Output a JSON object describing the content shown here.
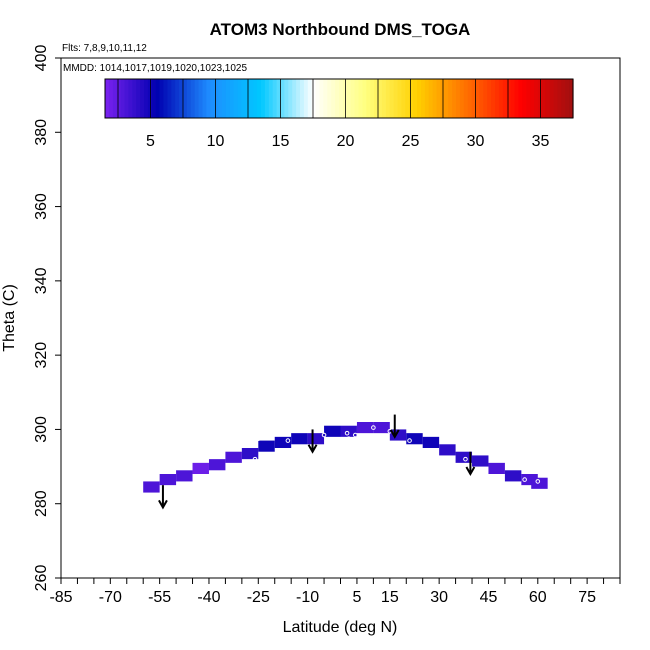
{
  "chart_data": {
    "type": "heatmap",
    "title": "ATOM3 Northbound DMS_TOGA",
    "notes": {
      "flights": "Flts: 7,8,9,10,11,12",
      "dates": "MMDD: 1014,1017,1019,1020,1023,1025"
    },
    "xlabel": "Latitude (deg N)",
    "ylabel": "Theta (C)",
    "xlim": [
      -85,
      85
    ],
    "ylim": [
      260,
      400
    ],
    "x_ticks": [
      -85,
      -70,
      -55,
      -40,
      -25,
      -10,
      5,
      15,
      30,
      45,
      60,
      75
    ],
    "y_ticks": [
      260,
      280,
      300,
      320,
      340,
      360,
      380,
      400
    ],
    "colorbar": {
      "range": [
        1.5,
        37.5
      ],
      "ticks": [
        5,
        10,
        15,
        20,
        25,
        30,
        35
      ],
      "colors": [
        "#7b22f0",
        "#0000b0",
        "#1e8cff",
        "#00c8ff",
        "#ffffff",
        "#ffff80",
        "#ffd000",
        "#ff6a00",
        "#ff0000",
        "#a01010"
      ]
    },
    "cells": [
      {
        "lat": -57.5,
        "theta": 284.5,
        "value": 3
      },
      {
        "lat": -52.5,
        "theta": 286.5,
        "value": 3
      },
      {
        "lat": -47.5,
        "theta": 287.5,
        "value": 3
      },
      {
        "lat": -42.5,
        "theta": 289.5,
        "value": 2
      },
      {
        "lat": -37.5,
        "theta": 290.5,
        "value": 3
      },
      {
        "lat": -32.5,
        "theta": 292.5,
        "value": 3
      },
      {
        "lat": -27.5,
        "theta": 293.5,
        "value": 4
      },
      {
        "lat": -22.5,
        "theta": 295.5,
        "value": 5
      },
      {
        "lat": -17.5,
        "theta": 296.5,
        "value": 5
      },
      {
        "lat": -12.5,
        "theta": 297.5,
        "value": 5
      },
      {
        "lat": -7.5,
        "theta": 297.5,
        "value": 4
      },
      {
        "lat": -2.5,
        "theta": 299.5,
        "value": 5
      },
      {
        "lat": 2.5,
        "theta": 299.5,
        "value": 4
      },
      {
        "lat": 7.5,
        "theta": 300.5,
        "value": 3
      },
      {
        "lat": 12.5,
        "theta": 300.5,
        "value": 3
      },
      {
        "lat": 17.5,
        "theta": 298.5,
        "value": 4
      },
      {
        "lat": 22.5,
        "theta": 297.5,
        "value": 5
      },
      {
        "lat": 27.5,
        "theta": 296.5,
        "value": 5
      },
      {
        "lat": 32.5,
        "theta": 294.5,
        "value": 4
      },
      {
        "lat": 37.5,
        "theta": 292.5,
        "value": 4
      },
      {
        "lat": 42.5,
        "theta": 291.5,
        "value": 4
      },
      {
        "lat": 47.5,
        "theta": 289.5,
        "value": 3
      },
      {
        "lat": 52.5,
        "theta": 287.5,
        "value": 4
      },
      {
        "lat": 57.5,
        "theta": 286.5,
        "value": 3
      },
      {
        "lat": 60.5,
        "theta": 285.5,
        "value": 3
      }
    ],
    "arrows": [
      {
        "lat": -54,
        "theta_top": 285,
        "theta_tip": 279
      },
      {
        "lat": -8.5,
        "theta_top": 300,
        "theta_tip": 294
      },
      {
        "lat": 16.5,
        "theta_top": 304,
        "theta_tip": 298
      },
      {
        "lat": 39.5,
        "theta_top": 294,
        "theta_tip": 288
      }
    ],
    "markers": [
      {
        "lat": -26,
        "theta": 292
      },
      {
        "lat": -25,
        "theta": 297.5
      },
      {
        "lat": -16,
        "theta": 297
      },
      {
        "lat": -5,
        "theta": 298.5
      },
      {
        "lat": 2,
        "theta": 299
      },
      {
        "lat": 2.5,
        "theta": 297.5
      },
      {
        "lat": 4.5,
        "theta": 298.5
      },
      {
        "lat": 10,
        "theta": 300.5
      },
      {
        "lat": 15,
        "theta": 299.5
      },
      {
        "lat": 21,
        "theta": 297
      },
      {
        "lat": 38,
        "theta": 292
      },
      {
        "lat": 56,
        "theta": 286.5
      },
      {
        "lat": 60,
        "theta": 286
      }
    ]
  }
}
